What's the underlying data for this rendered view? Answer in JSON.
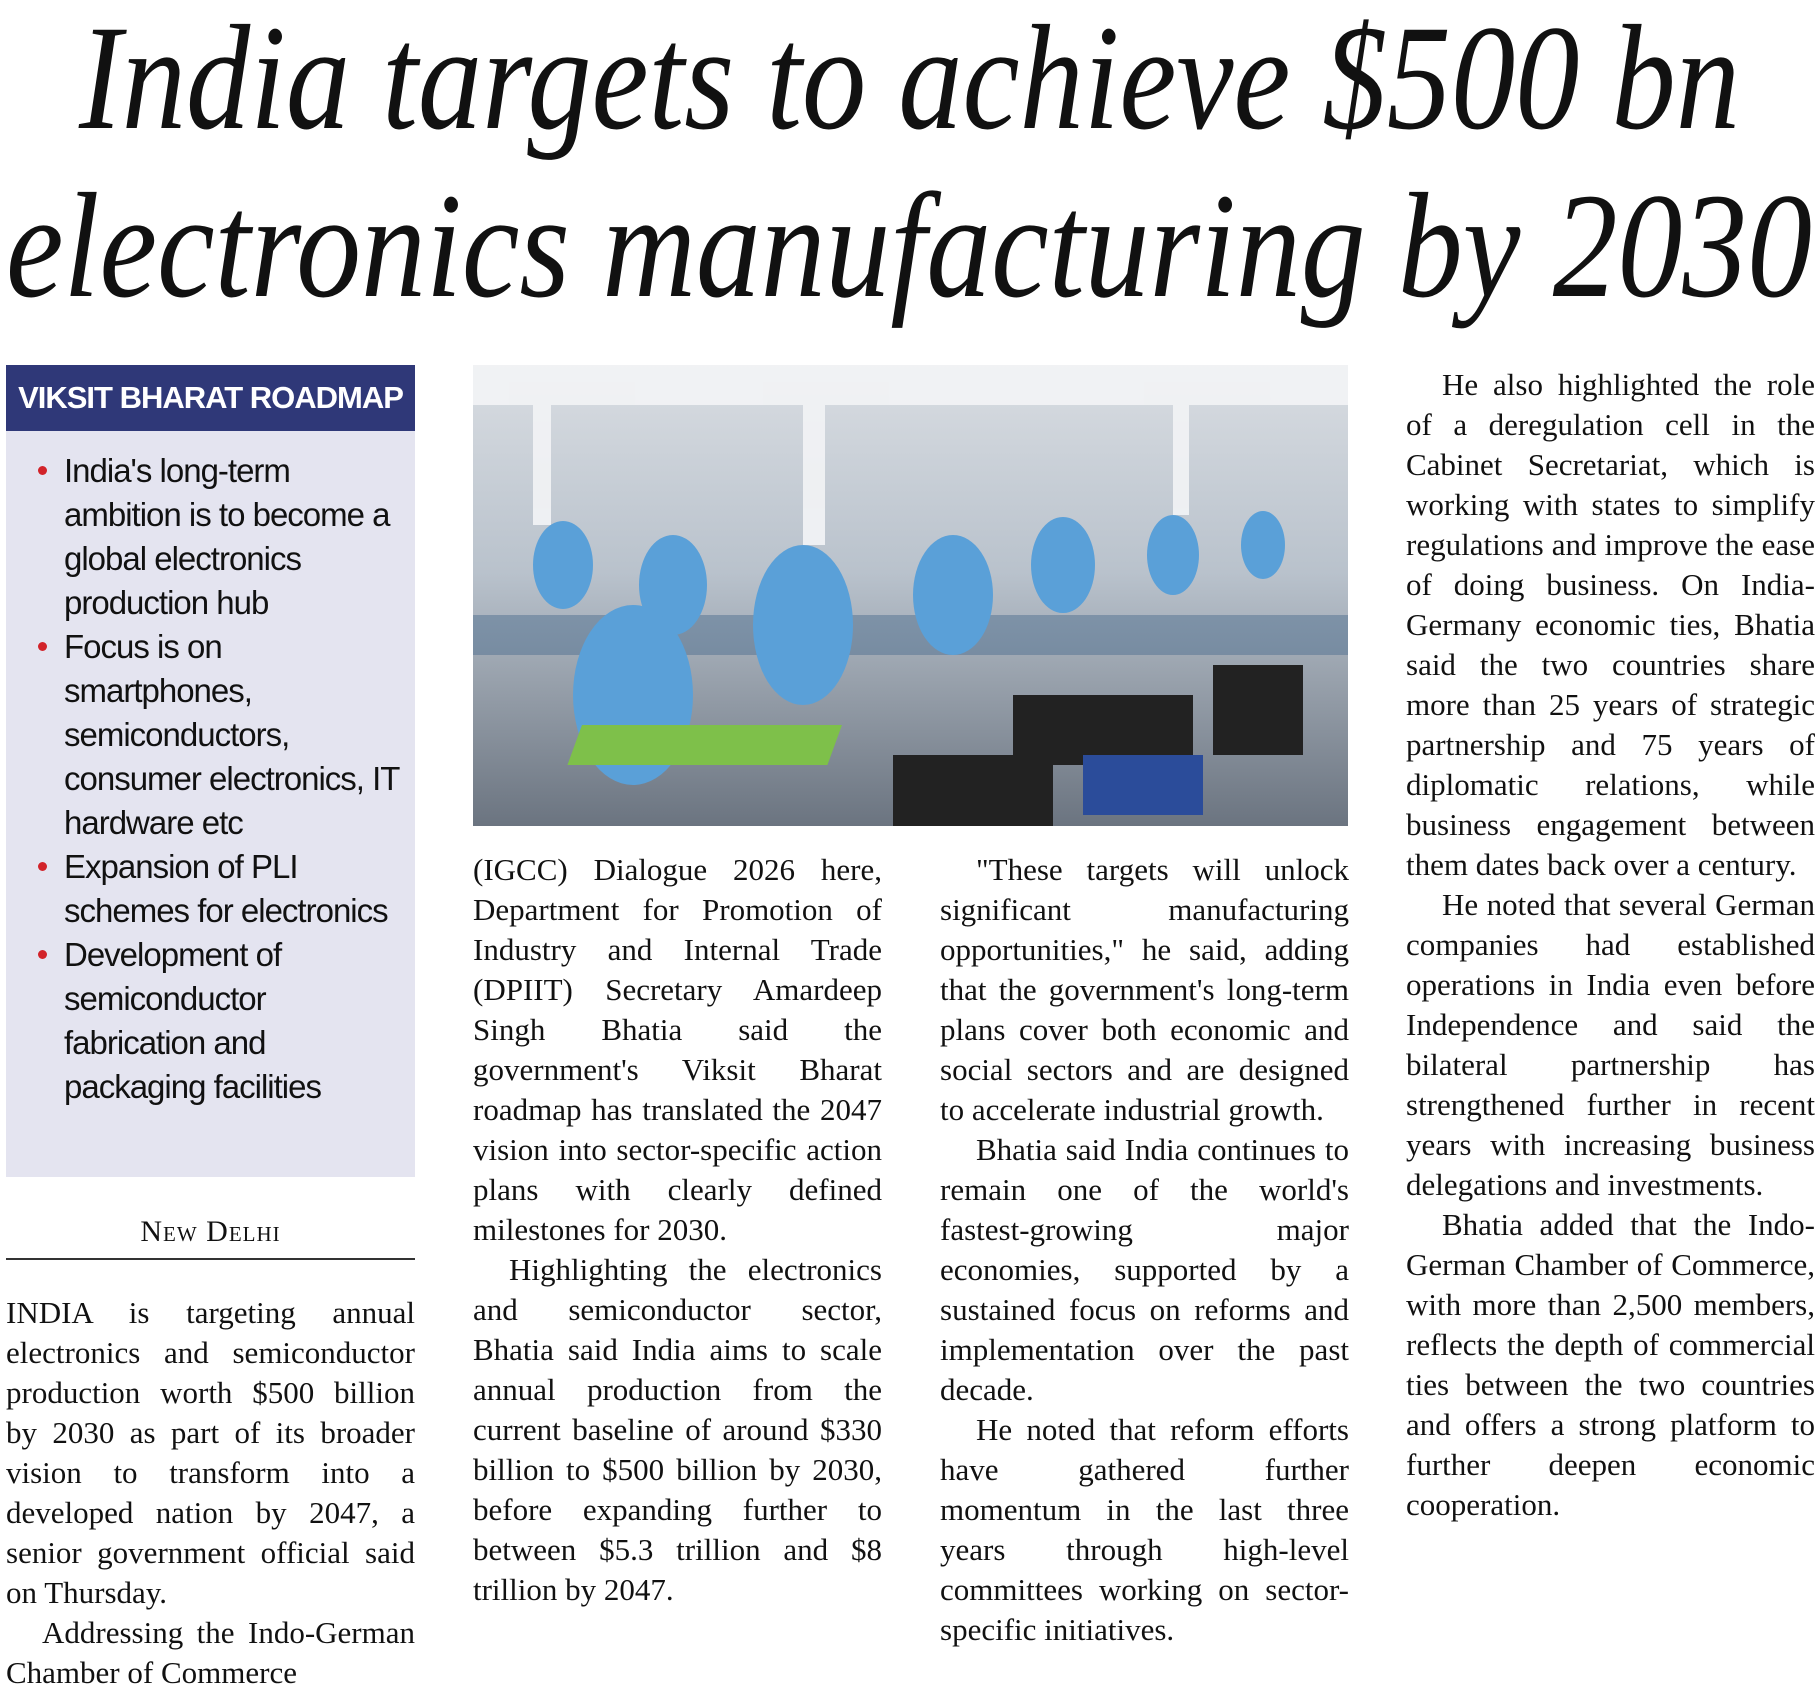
{
  "headline": [
    "India targets to achieve $500 bn",
    "electronics manufacturing by 2030"
  ],
  "sidebar": {
    "title": "VIKSIT BHARAT ROADMAP",
    "bullets": [
      "India's long-term ambition is to become a global electronics production hub",
      "Focus is on smartphones, semiconductors, consumer electronics, IT hardware etc",
      "Expansion of PLI schemes for electronics",
      "Development of semiconductor fabrication and packaging facilities"
    ]
  },
  "dateline": "New Delhi",
  "columns": [
    [
      "INDIA is targeting annual electronics and semiconductor production worth $500 billion by 2030 as part of its broader vision to transform into a developed nation by 2047, a senior government official said on Thursday.",
      "Addressing the Indo-German Chamber of Commerce"
    ],
    [
      "(IGCC) Dialogue 2026 here, Department for Promotion of Industry and Internal Trade (DPIIT) Secretary Amardeep Singh Bhatia said the government's Viksit Bharat roadmap has translated the 2047 vision into sector-specific action plans with clearly defined milestones for 2030.",
      "Highlighting the electronics and semiconductor sector, Bhatia said India aims to scale annual production from the current baseline of around $330 billion to $500 billion by 2030, before expanding further to between $5.3 trillion and $8 trillion by 2047."
    ],
    [
      "\"These targets will unlock significant manufacturing opportunities,\" he said, adding that the government's long-term plans cover both economic and social sectors and are designed to accelerate industrial growth.",
      "Bhatia said India continues to remain one of the world's fastest-growing major economies, supported by a sustained focus on reforms and implementation over the past decade.",
      "He noted that reform efforts have gathered further momentum in the last three years through high-level committees working on sector-specific initiatives."
    ],
    [
      "He also highlighted the role of a deregulation cell in the Cabinet Secretariat, which is working with states to simplify regulations and improve the ease of doing business. On India-Germany economic ties, Bhatia said the two countries share more than 25 years of strategic partnership and 75 years of diplomatic relations, while business engagement between them dates back over a century.",
      "He noted that several German companies had established operations in India even before Independence and said the bilateral partnership has strengthened further in recent years with increasing business delegations and investments.",
      "Bhatia added that the Indo-German Chamber of Commerce, with more than 2,500 members, reflects the depth of commercial ties between the two countries and offers a strong platform to further deepen economic cooperation."
    ]
  ]
}
